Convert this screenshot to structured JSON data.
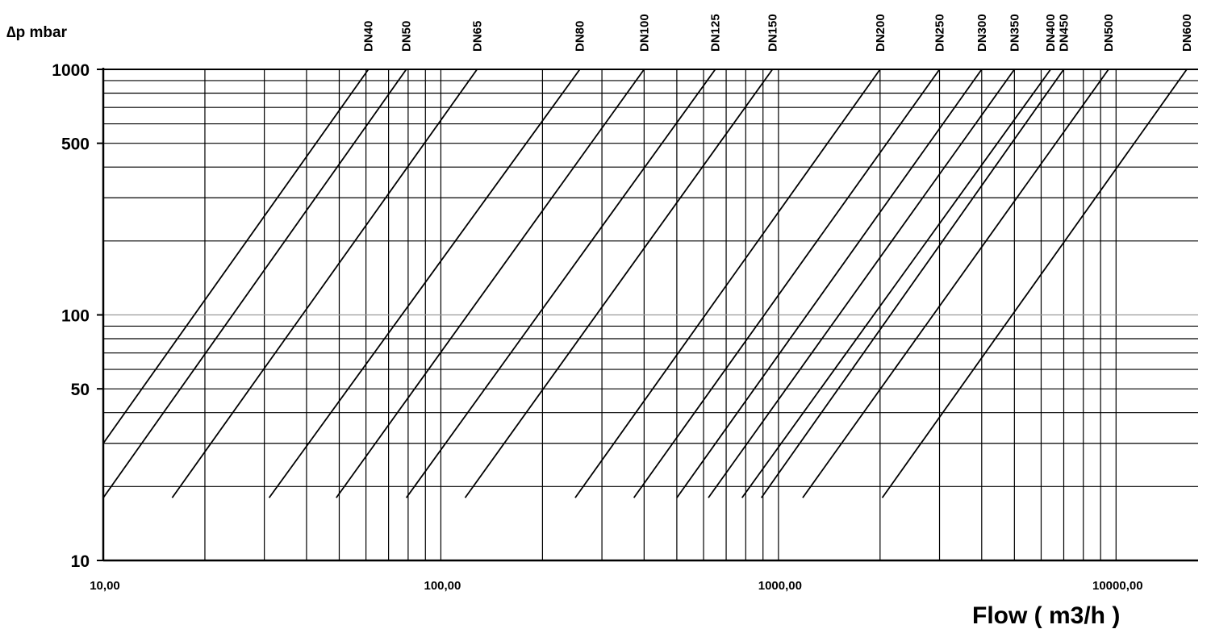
{
  "chart_data": {
    "type": "line",
    "xlabel": "Flow ( m3/h )",
    "ylabel": "∆p mbar",
    "x_scale": "log",
    "y_scale": "log",
    "xlim": [
      10,
      17500
    ],
    "ylim": [
      10,
      1000
    ],
    "x_ticks": [
      {
        "value": 10,
        "label": "10,00"
      },
      {
        "value": 100,
        "label": "100,00"
      },
      {
        "value": 1000,
        "label": "1000,00"
      },
      {
        "value": 10000,
        "label": "10000,00"
      }
    ],
    "y_ticks": [
      {
        "value": 10,
        "label": "10"
      },
      {
        "value": 50,
        "label": "50"
      },
      {
        "value": 100,
        "label": "100"
      },
      {
        "value": 500,
        "label": "500"
      },
      {
        "value": 1000,
        "label": "1000"
      }
    ],
    "grid": true,
    "series": [
      {
        "name": "DN40",
        "points": [
          [
            10,
            30
          ],
          [
            61,
            1000
          ]
        ]
      },
      {
        "name": "DN50",
        "points": [
          [
            10,
            18
          ],
          [
            79,
            1000
          ]
        ]
      },
      {
        "name": "DN65",
        "points": [
          [
            16,
            18
          ],
          [
            128,
            1000
          ]
        ]
      },
      {
        "name": "DN80",
        "points": [
          [
            31,
            18
          ],
          [
            258,
            1000
          ]
        ]
      },
      {
        "name": "DN100",
        "points": [
          [
            49,
            18
          ],
          [
            400,
            1000
          ]
        ]
      },
      {
        "name": "DN125",
        "points": [
          [
            79,
            18
          ],
          [
            650,
            1000
          ]
        ]
      },
      {
        "name": "DN150",
        "points": [
          [
            118,
            18
          ],
          [
            960,
            1000
          ]
        ]
      },
      {
        "name": "DN200",
        "points": [
          [
            250,
            18
          ],
          [
            2000,
            1000
          ]
        ]
      },
      {
        "name": "DN250",
        "points": [
          [
            373,
            18
          ],
          [
            3000,
            1000
          ]
        ]
      },
      {
        "name": "DN300",
        "points": [
          [
            500,
            18
          ],
          [
            4000,
            1000
          ]
        ]
      },
      {
        "name": "DN350",
        "points": [
          [
            620,
            18
          ],
          [
            5000,
            1000
          ]
        ]
      },
      {
        "name": "DN400",
        "points": [
          [
            780,
            18
          ],
          [
            6400,
            1000
          ]
        ]
      },
      {
        "name": "DN450",
        "points": [
          [
            890,
            18
          ],
          [
            7000,
            1000
          ]
        ]
      },
      {
        "name": "DN500",
        "points": [
          [
            1180,
            18
          ],
          [
            9500,
            1000
          ]
        ]
      },
      {
        "name": "DN600",
        "points": [
          [
            2030,
            18
          ],
          [
            16200,
            1000
          ]
        ]
      }
    ]
  }
}
